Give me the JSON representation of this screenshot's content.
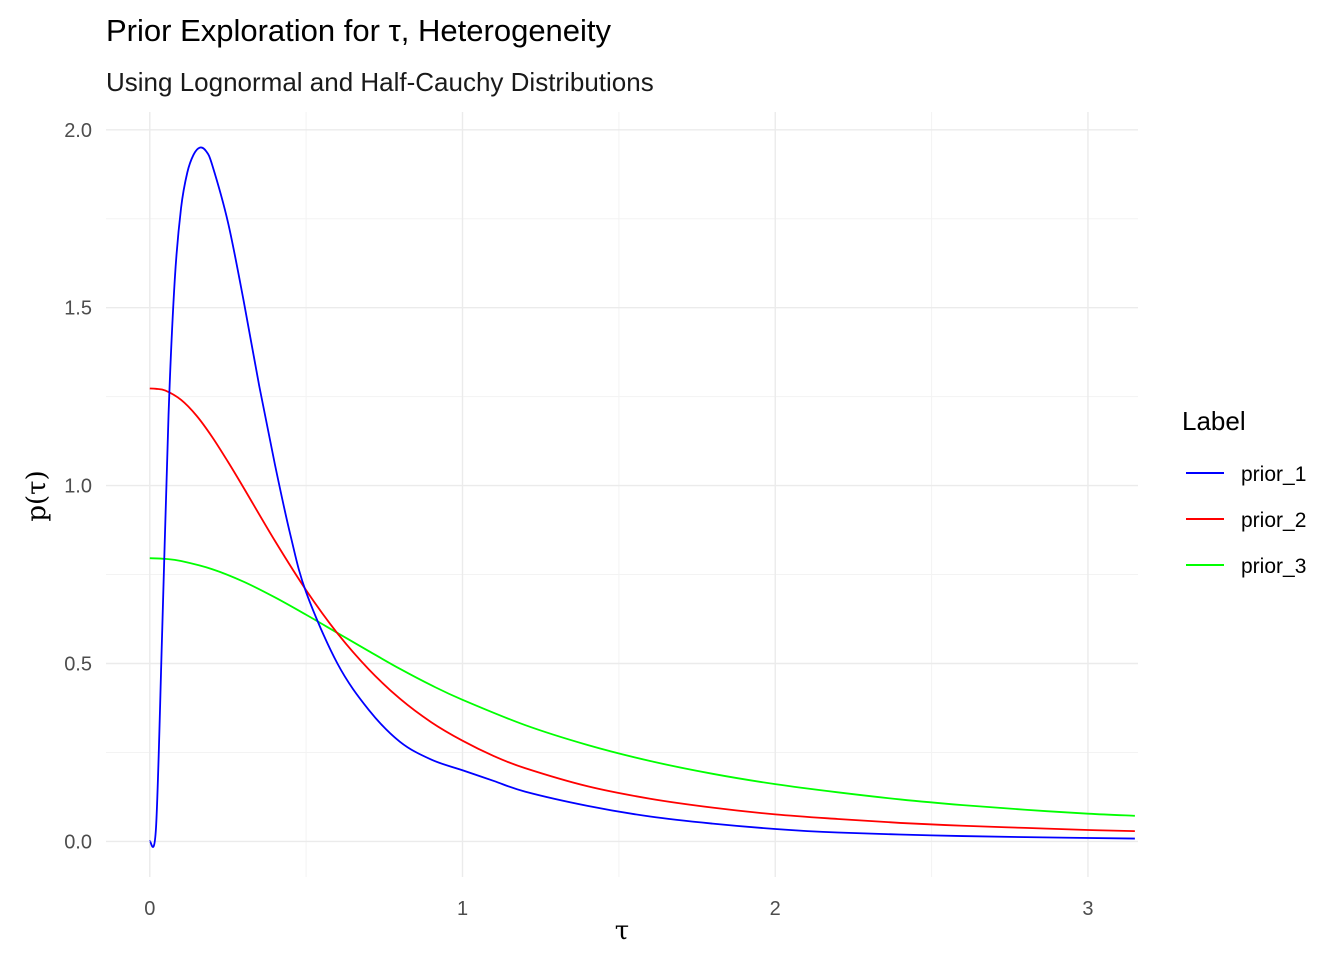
{
  "chart_data": {
    "type": "line",
    "title": "Prior Exploration for τ, Heterogeneity",
    "subtitle": "Using Lognormal and Half-Cauchy Distributions",
    "xlabel": "τ",
    "ylabel": "p(τ)",
    "xlim": [
      -0.14,
      3.16
    ],
    "ylim": [
      -0.1,
      2.05
    ],
    "x_ticks": [
      0,
      1,
      2,
      3
    ],
    "x_tick_labels": [
      "0",
      "1",
      "2",
      "3"
    ],
    "y_ticks": [
      0.0,
      0.5,
      1.0,
      1.5,
      2.0
    ],
    "y_tick_labels": [
      "0.0",
      "0.5",
      "1.0",
      "1.5",
      "2.0"
    ],
    "grid": true,
    "legend": {
      "title": "Label",
      "position": "right"
    },
    "series": [
      {
        "name": "prior_1",
        "color": "#0000ff",
        "x": [
          0,
          0.02,
          0.04,
          0.06,
          0.08,
          0.1,
          0.12,
          0.14,
          0.16,
          0.18,
          0.2,
          0.25,
          0.3,
          0.35,
          0.4,
          0.45,
          0.5,
          0.6,
          0.7,
          0.8,
          0.9,
          1.0,
          1.1,
          1.2,
          1.4,
          1.6,
          1.8,
          2.0,
          2.2,
          2.5,
          2.8,
          3.15
        ],
        "values": [
          0.0,
          0.04,
          0.6,
          1.2,
          1.58,
          1.78,
          1.88,
          1.93,
          1.95,
          1.94,
          1.9,
          1.74,
          1.52,
          1.28,
          1.06,
          0.86,
          0.7,
          0.5,
          0.37,
          0.28,
          0.23,
          0.2,
          0.17,
          0.14,
          0.1,
          0.07,
          0.05,
          0.035,
          0.025,
          0.017,
          0.012,
          0.008
        ]
      },
      {
        "name": "prior_2",
        "color": "#ff0000",
        "x": [
          0,
          0.02,
          0.05,
          0.1,
          0.15,
          0.2,
          0.25,
          0.3,
          0.4,
          0.5,
          0.6,
          0.7,
          0.8,
          0.9,
          1.0,
          1.1,
          1.2,
          1.4,
          1.6,
          1.8,
          2.0,
          2.2,
          2.4,
          2.6,
          2.8,
          3.0,
          3.15
        ],
        "values": [
          1.273,
          1.272,
          1.267,
          1.241,
          1.196,
          1.136,
          1.067,
          0.994,
          0.845,
          0.706,
          0.585,
          0.484,
          0.401,
          0.335,
          0.283,
          0.24,
          0.206,
          0.155,
          0.12,
          0.095,
          0.076,
          0.063,
          0.052,
          0.044,
          0.038,
          0.032,
          0.029
        ]
      },
      {
        "name": "prior_3",
        "color": "#00ff00",
        "x": [
          0,
          0.05,
          0.1,
          0.2,
          0.3,
          0.4,
          0.5,
          0.6,
          0.7,
          0.8,
          0.9,
          1.0,
          1.2,
          1.4,
          1.6,
          1.8,
          2.0,
          2.2,
          2.4,
          2.6,
          2.8,
          3.0,
          3.15
        ],
        "values": [
          0.796,
          0.794,
          0.788,
          0.765,
          0.73,
          0.686,
          0.637,
          0.586,
          0.535,
          0.485,
          0.439,
          0.398,
          0.327,
          0.271,
          0.226,
          0.19,
          0.161,
          0.138,
          0.118,
          0.102,
          0.089,
          0.078,
          0.072
        ]
      }
    ]
  }
}
